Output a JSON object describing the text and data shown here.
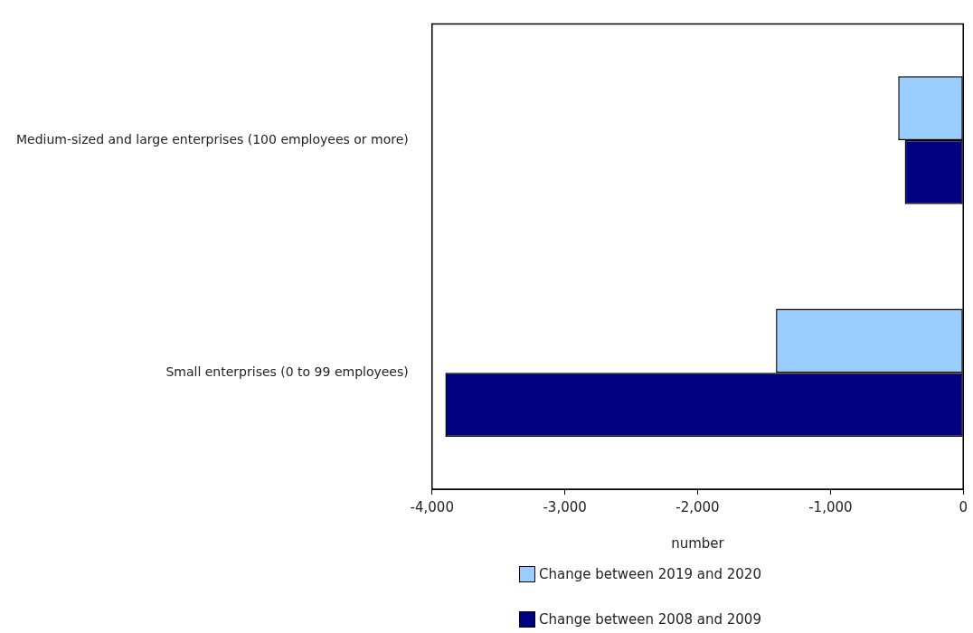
{
  "chart_data": {
    "type": "bar",
    "orientation": "horizontal",
    "categories": [
      "Medium-sized and large enterprises (100 employees or more)",
      "Small enterprises (0 to 99 employees)"
    ],
    "series": [
      {
        "name": "Change between 2019 and 2020",
        "color": "#99ccff",
        "values": [
          -490,
          -1410
        ]
      },
      {
        "name": "Change between 2008 and 2009",
        "color": "#000080",
        "values": [
          -440,
          -3900
        ]
      }
    ],
    "xlabel": "number",
    "xlim": [
      -4000,
      0
    ],
    "xticks": [
      {
        "value": -4000,
        "label": "-4,000"
      },
      {
        "value": -3000,
        "label": "-3,000"
      },
      {
        "value": -2000,
        "label": "-2,000"
      },
      {
        "value": -1000,
        "label": "-1,000"
      },
      0
    ],
    "grid": false,
    "legend": "bottom"
  }
}
